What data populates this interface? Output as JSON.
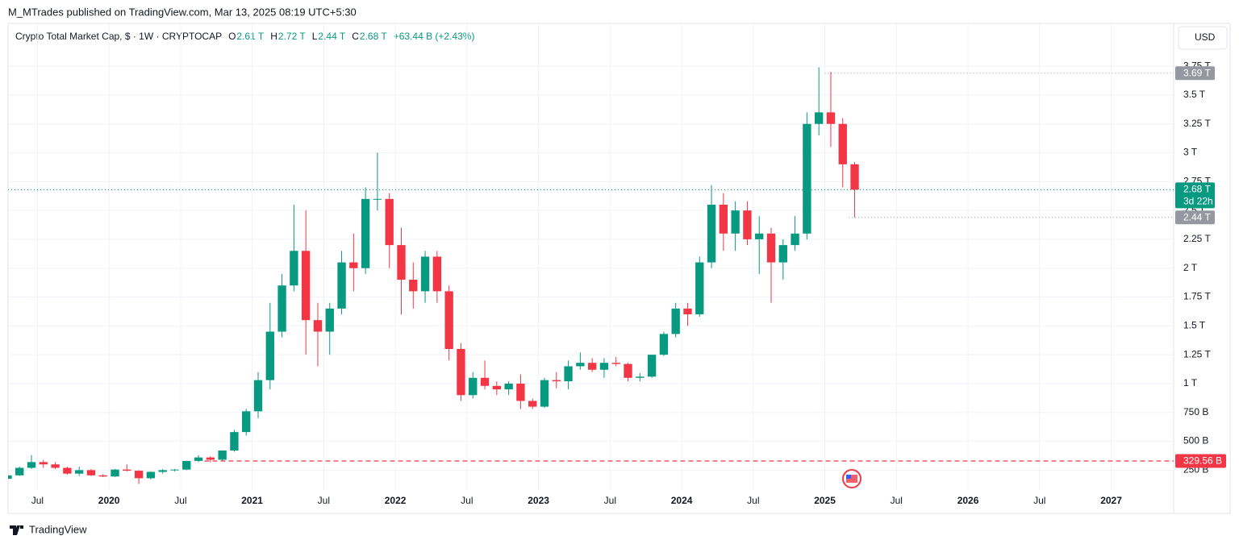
{
  "publisher": "M_MTrades published on TradingView.com, Mar 13, 2025 08:19 UTC+5:30",
  "currency_button": "USD",
  "footer_brand": "TradingView",
  "chart_data": {
    "type": "candlestick",
    "title": "Crypto Total Market Cap, $ · 1W · CRYPTOCAP",
    "ohlc_legend": {
      "open_label": "O",
      "open": "2.61 T",
      "high_label": "H",
      "high": "2.72 T",
      "low_label": "L",
      "low": "2.44 T",
      "close_label": "C",
      "close": "2.68 T",
      "change": "+63.44 B (+2.43%)"
    },
    "up_color": "#089981",
    "down_color": "#f23645",
    "x": [
      "2019-04",
      "2019-05",
      "2019-06",
      "2019-07",
      "2019-08",
      "2019-09",
      "2019-10",
      "2019-11",
      "2019-12",
      "2020-01",
      "2020-02",
      "2020-03",
      "2020-04",
      "2020-05",
      "2020-06",
      "2020-07",
      "2020-08",
      "2020-09",
      "2020-10",
      "2020-11",
      "2020-12",
      "2021-01",
      "2021-02",
      "2021-03",
      "2021-04",
      "2021-05",
      "2021-06",
      "2021-07",
      "2021-08",
      "2021-09",
      "2021-10",
      "2021-11",
      "2021-12",
      "2022-01",
      "2022-02",
      "2022-03",
      "2022-04",
      "2022-05",
      "2022-06",
      "2022-07",
      "2022-08",
      "2022-09",
      "2022-10",
      "2022-11",
      "2022-12",
      "2023-01",
      "2023-02",
      "2023-03",
      "2023-04",
      "2023-05",
      "2023-06",
      "2023-07",
      "2023-08",
      "2023-09",
      "2023-10",
      "2023-11",
      "2023-12",
      "2024-01",
      "2024-02",
      "2024-03",
      "2024-04",
      "2024-05",
      "2024-06",
      "2024-07",
      "2024-08",
      "2024-09",
      "2024-10",
      "2024-11",
      "2024-12",
      "2025-01",
      "2025-02",
      "2025-03"
    ],
    "open": [
      175,
      205,
      270,
      320,
      300,
      270,
      220,
      250,
      205,
      195,
      255,
      245,
      180,
      235,
      250,
      255,
      330,
      360,
      340,
      420,
      580,
      760,
      1030,
      1450,
      1850,
      2150,
      1550,
      1450,
      1650,
      2050,
      2000,
      2600,
      2600,
      2200,
      1900,
      1800,
      2100,
      1800,
      1300,
      900,
      1050,
      980,
      950,
      1000,
      850,
      800,
      1030,
      1020,
      1150,
      1180,
      1120,
      1180,
      1170,
      1050,
      1060,
      1250,
      1430,
      1650,
      1600,
      2050,
      2550,
      2300,
      2500,
      2250,
      2300,
      2050,
      2200,
      2300,
      3250,
      3350,
      3250,
      2900
    ],
    "high": [
      210,
      280,
      380,
      340,
      320,
      280,
      280,
      260,
      215,
      260,
      300,
      250,
      240,
      260,
      260,
      330,
      380,
      370,
      420,
      600,
      780,
      1100,
      1700,
      1950,
      2550,
      2500,
      1700,
      1700,
      2150,
      2300,
      2700,
      3000,
      2650,
      2350,
      2050,
      2150,
      2150,
      1850,
      1350,
      1100,
      1200,
      1020,
      1020,
      1080,
      870,
      1050,
      1100,
      1200,
      1270,
      1220,
      1220,
      1230,
      1180,
      1090,
      1250,
      1450,
      1700,
      1700,
      2100,
      2720,
      2650,
      2580,
      2580,
      2450,
      2350,
      2250,
      2450,
      3350,
      3740,
      3700,
      3300,
      2920
    ],
    "low": [
      170,
      200,
      260,
      270,
      260,
      210,
      200,
      200,
      190,
      190,
      240,
      130,
      170,
      220,
      240,
      250,
      320,
      320,
      330,
      410,
      550,
      700,
      950,
      1400,
      1800,
      1250,
      1150,
      1250,
      1600,
      1800,
      1950,
      2500,
      2000,
      1600,
      1650,
      1700,
      1700,
      1200,
      850,
      870,
      950,
      900,
      900,
      780,
      780,
      790,
      960,
      950,
      1120,
      1100,
      1050,
      1150,
      1020,
      1020,
      1050,
      1240,
      1400,
      1500,
      1580,
      2000,
      2150,
      2150,
      2200,
      1950,
      1700,
      1900,
      2150,
      2250,
      3150,
      3050,
      2700,
      2440
    ],
    "close": [
      205,
      270,
      320,
      300,
      270,
      220,
      250,
      205,
      195,
      255,
      245,
      180,
      235,
      250,
      255,
      330,
      360,
      340,
      420,
      580,
      760,
      1030,
      1450,
      1850,
      2150,
      1550,
      1450,
      1650,
      2050,
      2000,
      2600,
      2600,
      2200,
      1900,
      1800,
      2100,
      1800,
      1300,
      900,
      1050,
      980,
      950,
      1000,
      850,
      800,
      1030,
      1020,
      1150,
      1180,
      1120,
      1180,
      1170,
      1050,
      1060,
      1250,
      1430,
      1650,
      1600,
      2050,
      2550,
      2300,
      2500,
      2250,
      2300,
      2050,
      2200,
      2300,
      3250,
      3350,
      3250,
      2900,
      2680
    ],
    "xlim": [
      "2019-04",
      "2027-06"
    ],
    "xticks": [
      {
        "value": "2019-07",
        "label": "Jul"
      },
      {
        "value": "2020-01",
        "label": "2020"
      },
      {
        "value": "2020-07",
        "label": "Jul"
      },
      {
        "value": "2021-01",
        "label": "2021"
      },
      {
        "value": "2021-07",
        "label": "Jul"
      },
      {
        "value": "2022-01",
        "label": "2022"
      },
      {
        "value": "2022-07",
        "label": "Jul"
      },
      {
        "value": "2023-01",
        "label": "2023"
      },
      {
        "value": "2023-07",
        "label": "Jul"
      },
      {
        "value": "2024-01",
        "label": "2024"
      },
      {
        "value": "2024-07",
        "label": "Jul"
      },
      {
        "value": "2025-01",
        "label": "2025"
      },
      {
        "value": "2025-07",
        "label": "Jul"
      },
      {
        "value": "2026-01",
        "label": "2026"
      },
      {
        "value": "2026-07",
        "label": "Jul"
      },
      {
        "value": "2027-01",
        "label": "2027"
      }
    ],
    "ylim": [
      78,
      4114
    ],
    "yticks": [
      {
        "value": 250,
        "label": "250 B"
      },
      {
        "value": 500,
        "label": "500 B"
      },
      {
        "value": 750,
        "label": "750 B"
      },
      {
        "value": 1000,
        "label": "1 T"
      },
      {
        "value": 1250,
        "label": "1.25 T"
      },
      {
        "value": 1500,
        "label": "1.5 T"
      },
      {
        "value": 1750,
        "label": "1.75 T"
      },
      {
        "value": 2000,
        "label": "2 T"
      },
      {
        "value": 2250,
        "label": "2.25 T"
      },
      {
        "value": 2500,
        "label": "2.5 T"
      },
      {
        "value": 2750,
        "label": "2.75 T"
      },
      {
        "value": 3000,
        "label": "3 T"
      },
      {
        "value": 3250,
        "label": "3.25 T"
      },
      {
        "value": 3500,
        "label": "3.5 T"
      },
      {
        "value": 3750,
        "label": "3.75 T"
      }
    ],
    "grid": true,
    "price_lines": [
      {
        "value": 3690,
        "label": "3.69 T",
        "color": "#9598a1",
        "style": "dotted",
        "from": "2025-01"
      },
      {
        "value": 2680,
        "label": "2.68 T",
        "color": "#089981",
        "style": "dotted",
        "from": "2019-04",
        "countdown": "3d 22h"
      },
      {
        "value": 2440,
        "label": "2.44 T",
        "color": "#9598a1",
        "style": "dotted",
        "from": "2025-03"
      },
      {
        "value": 329.56,
        "label": "329.56 B",
        "color": "#f23645",
        "style": "dashed",
        "from": "2020-09"
      }
    ]
  }
}
